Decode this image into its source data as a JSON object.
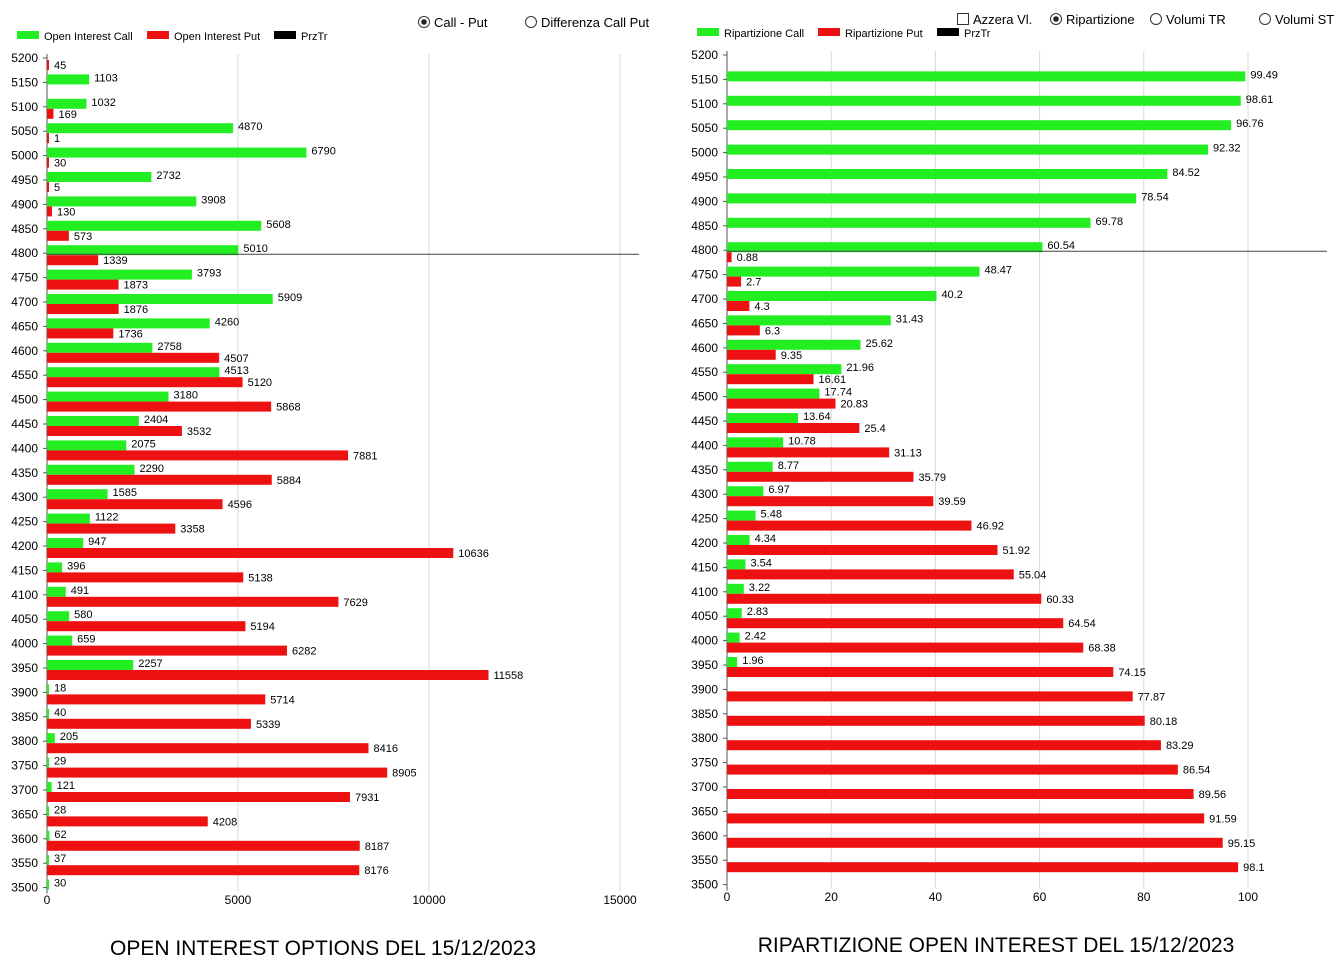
{
  "controls_left": [
    {
      "label": "Call - Put",
      "kind": "radio",
      "checked": true
    },
    {
      "label": "Differenza Call Put",
      "kind": "radio",
      "checked": false
    }
  ],
  "controls_right": [
    {
      "label": "Azzera Vl.",
      "kind": "checkbox",
      "checked": false
    },
    {
      "label": "Ripartizione",
      "kind": "radio",
      "checked": true
    },
    {
      "label": "Volumi TR",
      "kind": "radio",
      "checked": false
    },
    {
      "label": "Volumi ST",
      "kind": "radio",
      "checked": false
    }
  ],
  "colors": {
    "call": "#22ee22",
    "put": "#ee1111",
    "line": "#000000",
    "grid": "#d9d9d9"
  },
  "chart_data": [
    {
      "type": "bar",
      "orientation": "horizontal",
      "title": "OPEN INTEREST OPTIONS DEL 15/12/2023",
      "legend": [
        {
          "name": "Open Interest Call",
          "color": "#22ee22"
        },
        {
          "name": "Open Interest Put",
          "color": "#ee1111"
        },
        {
          "name": "PrzTr",
          "color": "#000000"
        }
      ],
      "legend_position": "top-left",
      "categories": [
        "5200",
        "5150",
        "5100",
        "5050",
        "5000",
        "4950",
        "4900",
        "4850",
        "4800",
        "4750",
        "4700",
        "4650",
        "4600",
        "4550",
        "4500",
        "4450",
        "4400",
        "4350",
        "4300",
        "4250",
        "4200",
        "4150",
        "4100",
        "4050",
        "4000",
        "3950",
        "3900",
        "3850",
        "3800",
        "3750",
        "3700",
        "3650",
        "3600",
        "3550",
        "3500"
      ],
      "series": [
        {
          "name": "Open Interest Call",
          "values": [
            null,
            1103,
            1032,
            4870,
            6790,
            2732,
            3908,
            5608,
            5010,
            3793,
            5909,
            4260,
            2758,
            4513,
            3180,
            2404,
            2075,
            2290,
            1585,
            1122,
            947,
            396,
            491,
            580,
            659,
            2257,
            18,
            40,
            205,
            29,
            121,
            28,
            62,
            37,
            30
          ]
        },
        {
          "name": "Open Interest Put",
          "values": [
            45,
            null,
            169,
            1,
            30,
            5,
            130,
            573,
            1339,
            1873,
            1876,
            1736,
            4507,
            5120,
            5868,
            3532,
            7881,
            5884,
            4596,
            3358,
            10636,
            5138,
            7629,
            5194,
            6282,
            11558,
            5714,
            5339,
            8416,
            8905,
            7931,
            4208,
            8187,
            8176,
            null
          ]
        }
      ],
      "reference_line": {
        "name": "PrzTr",
        "category": "4800"
      },
      "xlim": [
        0,
        15000
      ],
      "xticks": [
        0,
        5000,
        10000,
        15000
      ],
      "grid": true
    },
    {
      "type": "bar",
      "orientation": "horizontal",
      "title": "RIPARTIZIONE OPEN INTEREST DEL 15/12/2023",
      "legend": [
        {
          "name": "Ripartizione Call",
          "color": "#22ee22"
        },
        {
          "name": "Ripartizione Put",
          "color": "#ee1111"
        },
        {
          "name": "PrzTr",
          "color": "#000000"
        }
      ],
      "legend_position": "top-left",
      "categories": [
        "5200",
        "5150",
        "5100",
        "5050",
        "5000",
        "4950",
        "4900",
        "4850",
        "4800",
        "4750",
        "4700",
        "4650",
        "4600",
        "4550",
        "4500",
        "4450",
        "4400",
        "4350",
        "4300",
        "4250",
        "4200",
        "4150",
        "4100",
        "4050",
        "4000",
        "3950",
        "3900",
        "3850",
        "3800",
        "3750",
        "3700",
        "3650",
        "3600",
        "3550",
        "3500"
      ],
      "series": [
        {
          "name": "Ripartizione Call",
          "values": [
            null,
            99.49,
            98.61,
            96.76,
            92.32,
            84.52,
            78.54,
            69.78,
            60.54,
            48.47,
            40.2,
            31.43,
            25.62,
            21.96,
            17.74,
            13.64,
            10.78,
            8.77,
            6.97,
            5.48,
            4.34,
            3.54,
            3.22,
            2.83,
            2.42,
            1.96,
            null,
            null,
            null,
            null,
            null,
            null,
            null,
            null,
            null
          ]
        },
        {
          "name": "Ripartizione Put",
          "values": [
            null,
            null,
            null,
            null,
            null,
            null,
            null,
            null,
            0.88,
            2.7,
            4.3,
            6.3,
            9.35,
            16.61,
            20.83,
            25.4,
            31.13,
            35.79,
            39.59,
            46.92,
            51.92,
            55.04,
            60.33,
            64.54,
            68.38,
            74.15,
            77.87,
            80.18,
            83.29,
            86.54,
            89.56,
            91.59,
            95.15,
            98.1,
            null
          ]
        }
      ],
      "reference_line": {
        "name": "PrzTr",
        "category": "4800"
      },
      "xlim": [
        0,
        100
      ],
      "xticks": [
        0,
        20,
        40,
        60,
        80,
        100
      ],
      "grid": true
    }
  ]
}
